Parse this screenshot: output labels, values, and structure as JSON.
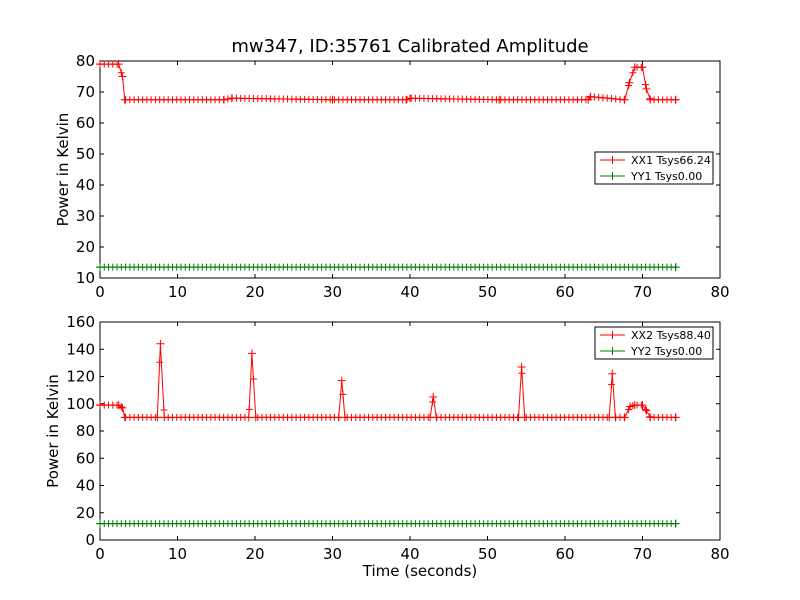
{
  "figure": {
    "title": "mw347, ID:35761 Calibrated Amplitude"
  },
  "chart_data": [
    {
      "type": "line",
      "xlabel": "",
      "ylabel": "Power in Kelvin",
      "xlim": [
        0,
        80
      ],
      "ylim": [
        10,
        80
      ],
      "xticks": [
        0,
        10,
        20,
        30,
        40,
        50,
        60,
        70,
        80
      ],
      "yticks": [
        10,
        20,
        30,
        40,
        50,
        60,
        70,
        80
      ],
      "grid": false,
      "legend_position": "center-right",
      "marker": "+",
      "series": [
        {
          "name": "XX1 Tsys66.24",
          "color": "#ff0000",
          "x": [
            0,
            2.4,
            2.9,
            3.2,
            16.0,
            17.0,
            30.0,
            39.5,
            40.0,
            51.5,
            63.0,
            63.3,
            67.7,
            68.3,
            69.0,
            70.0,
            70.5,
            71.0,
            74.3
          ],
          "values": [
            79,
            79,
            75,
            67.5,
            67.5,
            68,
            67.5,
            67.5,
            68,
            67.5,
            67.5,
            68.5,
            67.5,
            73,
            78,
            78,
            71,
            67.5,
            67.5
          ]
        },
        {
          "name": "YY1 Tsys0.00",
          "color": "#008000",
          "x": [
            0,
            74.3
          ],
          "values": [
            13.5,
            13.5
          ]
        }
      ]
    },
    {
      "type": "line",
      "xlabel": "Time (seconds)",
      "ylabel": "Power in Kelvin",
      "xlim": [
        0,
        80
      ],
      "ylim": [
        0,
        160
      ],
      "xticks": [
        0,
        10,
        20,
        30,
        40,
        50,
        60,
        70,
        80
      ],
      "yticks": [
        0,
        20,
        40,
        60,
        80,
        100,
        120,
        140,
        160
      ],
      "grid": false,
      "legend_position": "top-right",
      "marker": "+",
      "series": [
        {
          "name": "XX2 Tsys88.40",
          "color": "#ff0000",
          "x": [
            0,
            2.4,
            2.9,
            3.2,
            7.4,
            7.8,
            8.3,
            19.2,
            19.6,
            20.1,
            30.8,
            31.2,
            31.6,
            42.6,
            43.0,
            43.4,
            54.0,
            54.4,
            54.8,
            65.7,
            66.1,
            66.5,
            67.7,
            68.4,
            69.0,
            70.0,
            70.5,
            71.0,
            74.3
          ],
          "values": [
            99,
            99,
            97,
            90,
            90,
            144,
            90,
            90,
            137,
            90,
            90,
            117,
            90,
            90,
            105,
            90,
            90,
            127,
            90,
            90,
            122,
            90,
            90,
            98,
            99,
            99,
            95,
            90,
            90
          ]
        },
        {
          "name": "YY2 Tsys0.00",
          "color": "#008000",
          "x": [
            0,
            74.3
          ],
          "values": [
            12,
            12
          ]
        }
      ]
    }
  ]
}
